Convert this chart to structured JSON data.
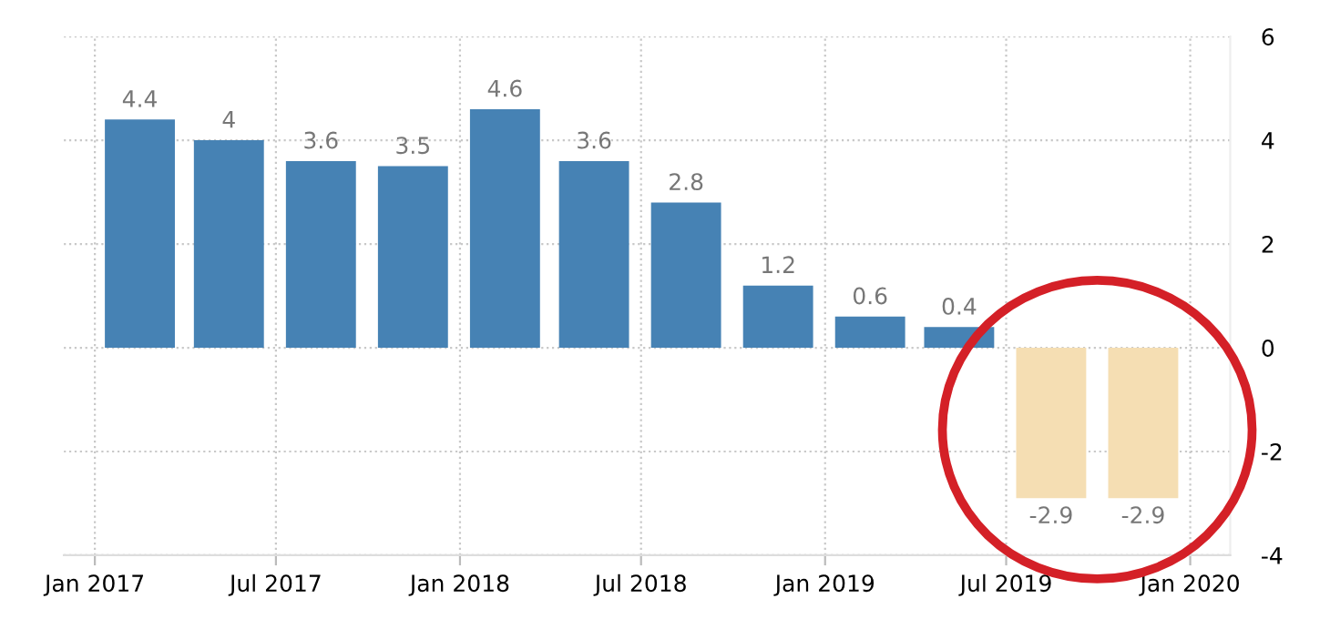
{
  "chart_data": {
    "type": "bar",
    "x": [
      "2017-02-15",
      "2017-05-15",
      "2017-08-15",
      "2017-11-15",
      "2018-02-15",
      "2018-05-15",
      "2018-08-15",
      "2018-11-15",
      "2019-02-15",
      "2019-05-15",
      "2019-08-15",
      "2019-11-15"
    ],
    "values": [
      4.4,
      4,
      3.6,
      3.5,
      4.6,
      3.6,
      2.8,
      1.2,
      0.6,
      0.4,
      -2.9,
      -2.9
    ],
    "colors": [
      "#4682b4",
      "#4682b4",
      "#4682b4",
      "#4682b4",
      "#4682b4",
      "#4682b4",
      "#4682b4",
      "#4682b4",
      "#4682b4",
      "#4682b4",
      "#f5deb3",
      "#f5deb3"
    ],
    "xlim": [
      "2016-12-01",
      "2020-02-10"
    ],
    "xticks": [
      {
        "value": "2017-01-01",
        "label": "Jan 2017"
      },
      {
        "value": "2017-07-01",
        "label": "Jul 2017"
      },
      {
        "value": "2018-01-01",
        "label": "Jan 2018"
      },
      {
        "value": "2018-07-01",
        "label": "Jul 2018"
      },
      {
        "value": "2019-01-01",
        "label": "Jan 2019"
      },
      {
        "value": "2019-07-01",
        "label": "Jul 2019"
      },
      {
        "value": "2020-01-01",
        "label": "Jan 2020"
      }
    ],
    "ylim": [
      -4,
      6
    ],
    "yticks": [
      -4,
      -2,
      0,
      2,
      4,
      6
    ],
    "grid": true,
    "data_labels": true
  }
}
